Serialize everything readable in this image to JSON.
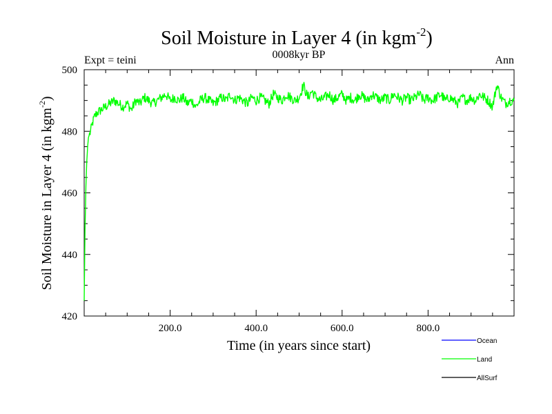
{
  "chart_data": {
    "type": "line",
    "title": "Soil Moisture in Layer 4 (in kgm",
    "title_superscript": "-2",
    "title_close": ")",
    "subtitle": "0008kyr BP",
    "top_left_label": "Expt = teini",
    "top_right_label": "Ann",
    "xlabel": "Time (in years since start)",
    "ylabel": "Soil Moisture in Layer 4 (in kgm",
    "ylabel_superscript": "-2",
    "ylabel_close": ")",
    "xlim": [
      0,
      1000
    ],
    "ylim": [
      420,
      500
    ],
    "x_ticks": [
      200,
      400,
      600,
      800
    ],
    "x_tick_labels": [
      "200.0",
      "400.0",
      "600.0",
      "800.0"
    ],
    "y_ticks": [
      420,
      440,
      460,
      480,
      500
    ],
    "y_tick_labels": [
      "420",
      "440",
      "460",
      "480",
      "500"
    ],
    "legend_position": "bottom-right",
    "series": [
      {
        "name": "Ocean",
        "color": "#0000ff",
        "x": [],
        "y": []
      },
      {
        "name": "Land",
        "color": "#00ff00",
        "x": [
          0,
          2,
          4,
          6,
          8,
          10,
          15,
          20,
          25,
          30,
          40,
          50,
          60,
          70,
          80,
          90,
          100,
          110,
          120,
          130,
          140,
          150,
          160,
          170,
          180,
          190,
          200,
          210,
          220,
          230,
          240,
          250,
          260,
          270,
          280,
          290,
          300,
          310,
          320,
          330,
          340,
          350,
          360,
          370,
          380,
          390,
          400,
          410,
          420,
          430,
          440,
          450,
          460,
          470,
          480,
          490,
          500,
          510,
          520,
          530,
          540,
          550,
          560,
          570,
          580,
          590,
          600,
          610,
          620,
          630,
          640,
          650,
          660,
          670,
          680,
          690,
          700,
          710,
          720,
          730,
          740,
          750,
          760,
          770,
          780,
          790,
          800,
          810,
          820,
          830,
          840,
          850,
          860,
          870,
          880,
          890,
          900,
          910,
          920,
          930,
          940,
          950,
          960,
          970,
          980,
          990,
          1000
        ],
        "y": [
          425,
          448,
          462,
          470,
          475,
          478,
          480,
          483,
          485,
          486,
          487,
          488,
          489,
          490,
          489,
          488,
          489,
          487,
          490,
          489,
          491,
          490,
          489,
          490,
          491,
          492,
          490,
          491,
          490,
          491,
          489,
          490,
          488,
          490,
          491,
          490,
          489,
          490,
          491,
          490,
          492,
          490,
          491,
          490,
          489,
          491,
          490,
          491,
          490,
          489,
          492,
          491,
          490,
          492,
          491,
          490,
          491,
          495,
          491,
          493,
          491,
          490,
          491,
          492,
          490,
          491,
          492,
          490,
          491,
          490,
          492,
          491,
          490,
          492,
          491,
          490,
          491,
          490,
          492,
          491,
          490,
          491,
          490,
          491,
          492,
          490,
          491,
          490,
          491,
          492,
          490,
          491,
          490,
          489,
          491,
          490,
          491,
          490,
          492,
          491,
          490,
          488,
          495,
          491,
          489,
          490,
          490
        ]
      },
      {
        "name": "AllSurf",
        "color": "#000000",
        "x": [],
        "y": []
      }
    ]
  }
}
